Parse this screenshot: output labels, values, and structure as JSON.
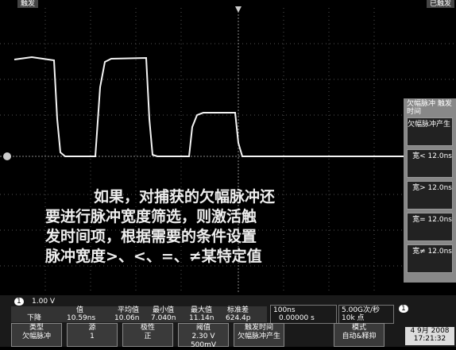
{
  "header": {
    "left": "触发",
    "right": "已触发"
  },
  "caption": {
    "lines": [
      "如果，对捕获的欠幅脉冲还",
      "要进行脉冲宽度筛选，则激活触",
      "发时间项，根据需要的条件设置",
      "脉冲宽度>、<、=、≠某特定值"
    ]
  },
  "side_panel": {
    "title": "欠幅脉冲 触发时间",
    "items": [
      "欠幅脉冲产生",
      "宽< 12.0ns",
      "宽> 12.0ns",
      "宽= 12.0ns",
      "宽≠ 12.0ns"
    ]
  },
  "channel": {
    "number": "1",
    "scale": "1.00 V"
  },
  "measurements": {
    "headers": [
      "值",
      "平均值",
      "最小值",
      "最大值",
      "标准差"
    ],
    "row_label": "下降",
    "row": [
      "10.59ns",
      "10.06n",
      "7.040n",
      "11.14n",
      "624.4p"
    ]
  },
  "timebase": {
    "scale": "100ns",
    "position": "0.00000 s"
  },
  "acquisition": {
    "rate": "5.00G次/秒",
    "points": "10k 点"
  },
  "trigger": {
    "source": "1"
  },
  "menu": [
    {
      "label": "类型",
      "value": "欠幅脉冲"
    },
    {
      "label": "源",
      "value": "1"
    },
    {
      "label": "极性",
      "value": "正"
    },
    {
      "label": "阈值",
      "value": "2.30 V 500mV"
    },
    {
      "label": "触发时间",
      "value": "欠幅脉冲产生"
    },
    {
      "label": "模式",
      "value": "自动&释抑"
    }
  ],
  "datetime": {
    "date": "4 9月 2008",
    "time": "17:21:32"
  }
}
